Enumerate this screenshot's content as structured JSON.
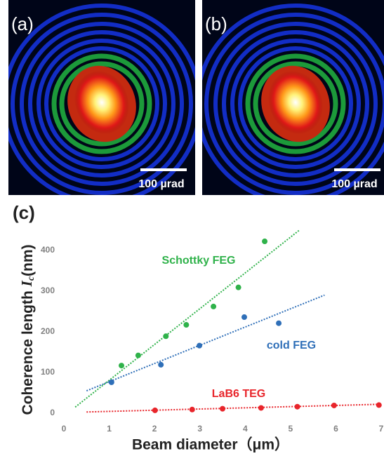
{
  "chart_data": {
    "type": "scatter",
    "panel_labels": [
      "(a)",
      "(b)",
      "(c)"
    ],
    "scale_bar": "100 µrad",
    "y_label": "Coherence length ",
    "y_label_var": "I",
    "y_label_sub": "c",
    "y_label_unit": "(nm)",
    "x_label": "Beam diameter（μm）",
    "xlim": [
      0,
      7
    ],
    "xticks": [
      0,
      1,
      2,
      3,
      4,
      5,
      6,
      7
    ],
    "ylim": [
      0,
      460
    ],
    "yticks": [
      0,
      100,
      200,
      300,
      400
    ],
    "series": [
      {
        "name": "Schottky FEG",
        "color": "#2fb24a",
        "x": [
          1.27,
          1.64,
          2.25,
          2.7,
          3.3,
          3.85,
          4.43
        ],
        "values": [
          117,
          142,
          189,
          217,
          262,
          309,
          422
        ],
        "trend": [
          [
            0.25,
            15
          ],
          [
            5.2,
            450
          ]
        ]
      },
      {
        "name": "cold FEG",
        "color": "#2f6fb8",
        "x": [
          1.05,
          2.14,
          2.99,
          3.98,
          4.74
        ],
        "values": [
          76,
          119,
          166,
          236,
          221
        ],
        "trend": [
          [
            0.5,
            55
          ],
          [
            5.75,
            290
          ]
        ]
      },
      {
        "name": "LaB6 TEG",
        "color": "#e8252b",
        "x": [
          2.01,
          2.83,
          3.5,
          4.35,
          5.15,
          5.96,
          6.95
        ],
        "values": [
          7,
          9,
          11,
          13,
          16,
          19,
          20
        ],
        "trend": [
          [
            0.5,
            3
          ],
          [
            7,
            22
          ]
        ]
      }
    ]
  }
}
